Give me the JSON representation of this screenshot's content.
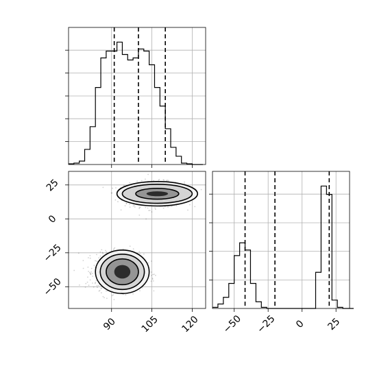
{
  "chart_data": [
    {
      "id": "hist_x",
      "type": "histogram",
      "title": "",
      "xlabel": "",
      "ylabel": "",
      "xlim": [
        74,
        125
      ],
      "grid": true,
      "bin_width": 2,
      "bins_start": 74,
      "counts": [
        1,
        2,
        5,
        22,
        55,
        112,
        155,
        165,
        165,
        178,
        160,
        152,
        155,
        168,
        165,
        145,
        112,
        85,
        52,
        25,
        12,
        2,
        1,
        0,
        0
      ],
      "quantile_lines": [
        91,
        100,
        110
      ]
    },
    {
      "id": "scatter_xy",
      "type": "scatter",
      "subtype": "2d-density-contour",
      "title": "",
      "xlabel": "",
      "ylabel": "",
      "xlim": [
        74,
        125
      ],
      "ylim": [
        -66,
        35
      ],
      "x_ticks": [
        "90",
        "105",
        "120"
      ],
      "y_ticks": [
        "25",
        "0",
        "−25",
        "−50"
      ],
      "grid": true,
      "clusters": [
        {
          "name": "",
          "center": [
            106,
            18
          ],
          "sd": [
            5.5,
            4.5
          ],
          "points": 900
        },
        {
          "name": "",
          "center": [
            93,
            -39
          ],
          "sd": [
            4.5,
            6.5
          ],
          "points": 1100
        }
      ],
      "contours": [
        {
          "center": [
            107,
            18.5
          ],
          "rx": [
            4,
            8,
            13,
            15
          ],
          "ry": [
            1.8,
            4,
            7,
            9
          ]
        },
        {
          "center": [
            94,
            -39
          ],
          "rx": [
            3,
            6,
            8.2,
            10
          ],
          "ry": [
            5,
            9.5,
            13,
            16
          ]
        }
      ]
    },
    {
      "id": "hist_y",
      "type": "histogram",
      "title": "",
      "xlabel": "",
      "ylabel": "",
      "xlim": [
        -66,
        35
      ],
      "x_ticks": [
        "−50",
        "−25",
        "0",
        "25"
      ],
      "grid": true,
      "bin_width": 4,
      "bins_start": -66,
      "counts": [
        2,
        8,
        20,
        45,
        95,
        118,
        105,
        45,
        12,
        2,
        0,
        0,
        0,
        0,
        0,
        0,
        0,
        0,
        0,
        65,
        220,
        205,
        15,
        2,
        0,
        0
      ],
      "quantile_lines": [
        -42,
        -20,
        20
      ]
    }
  ]
}
